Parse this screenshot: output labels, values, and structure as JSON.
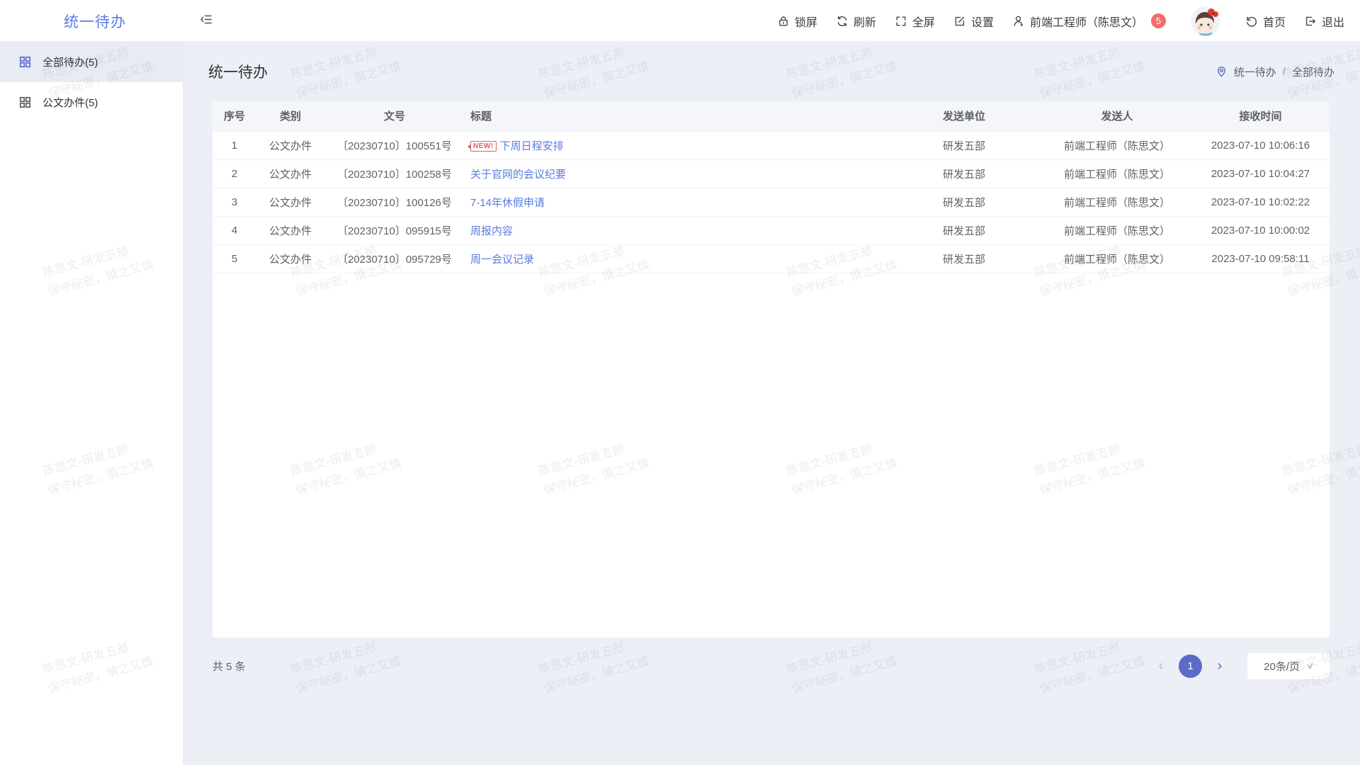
{
  "app": {
    "logo": "统一待办"
  },
  "header": {
    "lock": "锁屏",
    "refresh": "刷新",
    "fullscreen": "全屏",
    "settings": "设置",
    "user": "前端工程师（陈思文）",
    "badge_count": "5",
    "home": "首页",
    "logout": "退出"
  },
  "sidebar": {
    "items": [
      {
        "label": "全部待办(5)"
      },
      {
        "label": "公文办件(5)"
      }
    ]
  },
  "page": {
    "title": "统一待办",
    "breadcrumb": {
      "root": "统一待办",
      "sep": "/",
      "current": "全部待办"
    }
  },
  "table": {
    "headers": [
      "序号",
      "类别",
      "文号",
      "标题",
      "发送单位",
      "发送人",
      "接收时间"
    ],
    "rows": [
      {
        "seq": "1",
        "category": "公文办件",
        "doc_no": "〔20230710〕100551号",
        "new_badge": "NEW!",
        "title": "下周日程安排",
        "unit": "研发五部",
        "sender": "前端工程师（陈思文）",
        "time": "2023-07-10 10:06:16"
      },
      {
        "seq": "2",
        "category": "公文办件",
        "doc_no": "〔20230710〕100258号",
        "title": "关于官网的会议纪要",
        "unit": "研发五部",
        "sender": "前端工程师（陈思文）",
        "time": "2023-07-10 10:04:27"
      },
      {
        "seq": "3",
        "category": "公文办件",
        "doc_no": "〔20230710〕100126号",
        "title": "7-14年休假申请",
        "unit": "研发五部",
        "sender": "前端工程师（陈思文）",
        "time": "2023-07-10 10:02:22"
      },
      {
        "seq": "4",
        "category": "公文办件",
        "doc_no": "〔20230710〕095915号",
        "title": "周报内容",
        "unit": "研发五部",
        "sender": "前端工程师（陈思文）",
        "time": "2023-07-10 10:00:02"
      },
      {
        "seq": "5",
        "category": "公文办件",
        "doc_no": "〔20230710〕095729号",
        "title": "周一会议记录",
        "unit": "研发五部",
        "sender": "前端工程师（陈思文）",
        "time": "2023-07-10 09:58:11"
      }
    ]
  },
  "footer": {
    "total": "共 5 条",
    "current_page": "1",
    "prev": "‹",
    "next": "›",
    "page_size": "20条/页"
  },
  "watermark": {
    "line1": "陈思文-研发五部",
    "line2": "保守秘密，慎之又慎"
  },
  "colors": {
    "primary": "#5a6bc8",
    "link": "#587ce0",
    "logo": "#5a7be0",
    "badge": "#f56c6c",
    "new_tag": "#e25a5a"
  }
}
